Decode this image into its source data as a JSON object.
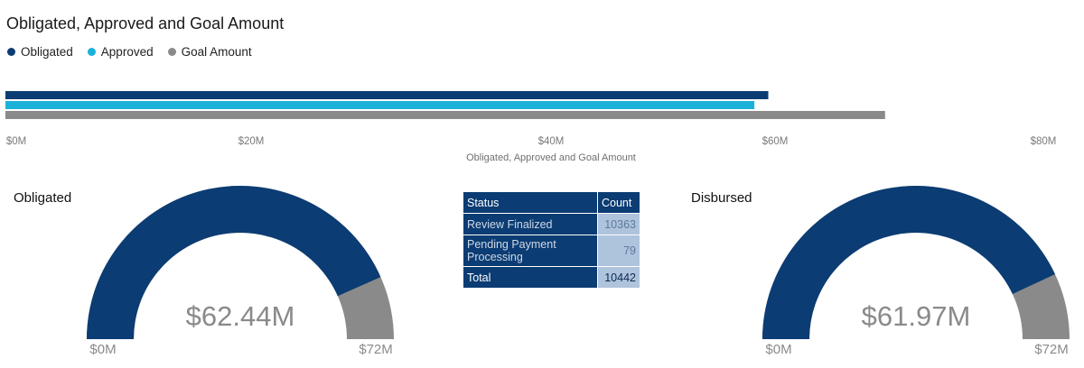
{
  "title": "Obligated, Approved and Goal Amount",
  "legend": [
    {
      "label": "Obligated",
      "color": "#0b3c73"
    },
    {
      "label": "Approved",
      "color": "#1ab2d8"
    },
    {
      "label": "Goal Amount",
      "color": "#8a8a8a"
    }
  ],
  "chart_data": [
    {
      "type": "bar",
      "orientation": "horizontal",
      "title": "Obligated, Approved and Goal Amount",
      "xlabel": "Obligated, Approved and Goal Amount",
      "xlim": [
        0,
        80
      ],
      "x_unit": "M",
      "ticks": [
        "$0M",
        "$20M",
        "$40M",
        "$60M",
        "$80M"
      ],
      "series": [
        {
          "name": "Obligated",
          "values": [
            62.44
          ]
        },
        {
          "name": "Approved",
          "values": [
            61.3
          ]
        },
        {
          "name": "Goal Amount",
          "values": [
            72
          ]
        }
      ],
      "legend_position": "top-left",
      "grid": false
    },
    {
      "type": "gauge",
      "title": "Obligated",
      "value": 62.44,
      "max": 72,
      "value_label": "$62.44M",
      "min_label": "$0M",
      "max_label": "$72M"
    },
    {
      "type": "table",
      "columns": [
        "Status",
        "Count"
      ],
      "rows": [
        [
          "Review Finalized",
          "10363"
        ],
        [
          "Pending Payment Processing",
          "79"
        ]
      ],
      "total": [
        "Total",
        "10442"
      ]
    },
    {
      "type": "gauge",
      "title": "Disbursed",
      "value": 61.97,
      "max": 72,
      "value_label": "$61.97M",
      "min_label": "$0M",
      "max_label": "$72M"
    }
  ]
}
